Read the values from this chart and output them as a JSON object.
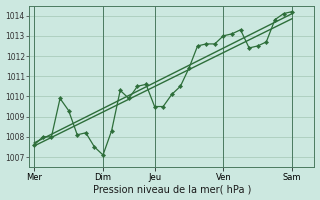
{
  "xlabel": "Pression niveau de la mer( hPa )",
  "background_color": "#cce8e0",
  "grid_color": "#aaccbb",
  "line_color": "#2d6e3a",
  "ylim": [
    1006.5,
    1014.5
  ],
  "xlim": [
    -0.3,
    16.3
  ],
  "x_ticks_labels": [
    "Mer",
    "Dim",
    "Jeu",
    "Ven",
    "Sam"
  ],
  "x_ticks_pos": [
    0.0,
    4.0,
    7.0,
    11.0,
    15.0
  ],
  "main_line_x": [
    0,
    0.5,
    1,
    1.5,
    2,
    2.5,
    3,
    3.5,
    4,
    4.5,
    5,
    5.5,
    6,
    6.5,
    7,
    7.5,
    8,
    8.5,
    9,
    9.5,
    10,
    10.5,
    11,
    11.5,
    12,
    12.5,
    13,
    13.5,
    14,
    14.5,
    15
  ],
  "main_line_y": [
    1007.6,
    1008.0,
    1008.0,
    1009.9,
    1009.3,
    1008.1,
    1008.2,
    1007.5,
    1007.1,
    1008.3,
    1010.3,
    1009.9,
    1010.5,
    1010.6,
    1009.5,
    1009.5,
    1010.1,
    1010.5,
    1011.4,
    1012.5,
    1012.6,
    1012.6,
    1013.0,
    1013.1,
    1013.3,
    1012.4,
    1012.5,
    1012.7,
    1013.8,
    1014.1,
    1014.2
  ],
  "trend_line1_x": [
    0,
    15
  ],
  "trend_line1_y": [
    1007.7,
    1014.1
  ],
  "trend_line2_x": [
    0,
    15
  ],
  "trend_line2_y": [
    1007.55,
    1013.85
  ]
}
